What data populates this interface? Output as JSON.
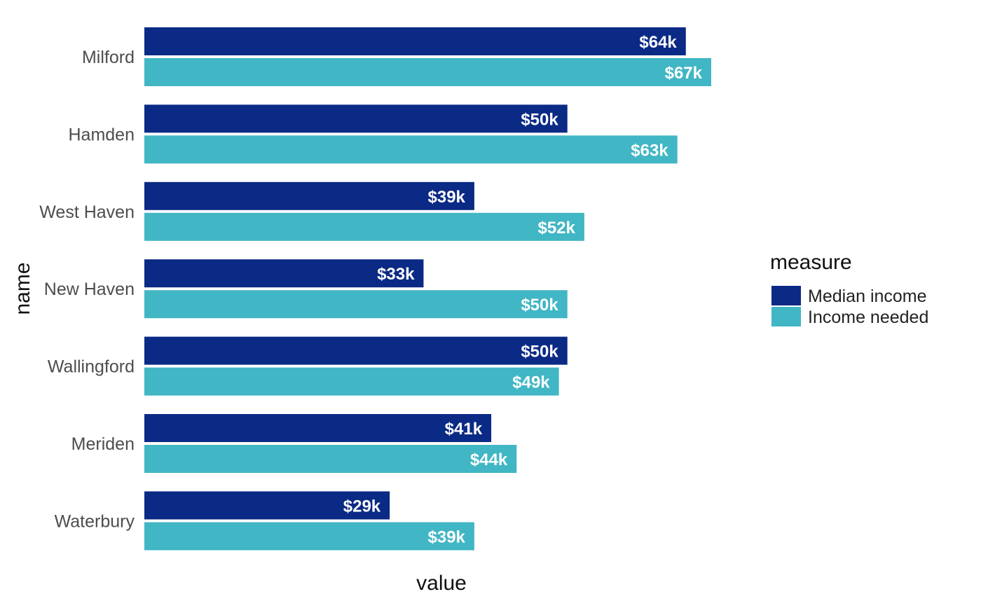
{
  "chart_data": {
    "type": "bar",
    "orientation": "horizontal",
    "categories": [
      "Milford",
      "Hamden",
      "West Haven",
      "New Haven",
      "Wallingford",
      "Meriden",
      "Waterbury"
    ],
    "series": [
      {
        "name": "Median income",
        "color": "#0b2a85",
        "values": [
          64,
          50,
          39,
          33,
          50,
          41,
          29
        ],
        "labels": [
          "$64k",
          "$50k",
          "$39k",
          "$33k",
          "$50k",
          "$41k",
          "$29k"
        ]
      },
      {
        "name": "Income needed",
        "color": "#41b6c4",
        "values": [
          67,
          63,
          52,
          50,
          49,
          44,
          39
        ],
        "labels": [
          "$67k",
          "$63k",
          "$52k",
          "$50k",
          "$49k",
          "$44k",
          "$39k"
        ]
      }
    ],
    "xlabel": "value",
    "ylabel": "name",
    "xlim": [
      0,
      70
    ],
    "grid": false,
    "legend": {
      "title": "measure",
      "position": "right"
    }
  }
}
